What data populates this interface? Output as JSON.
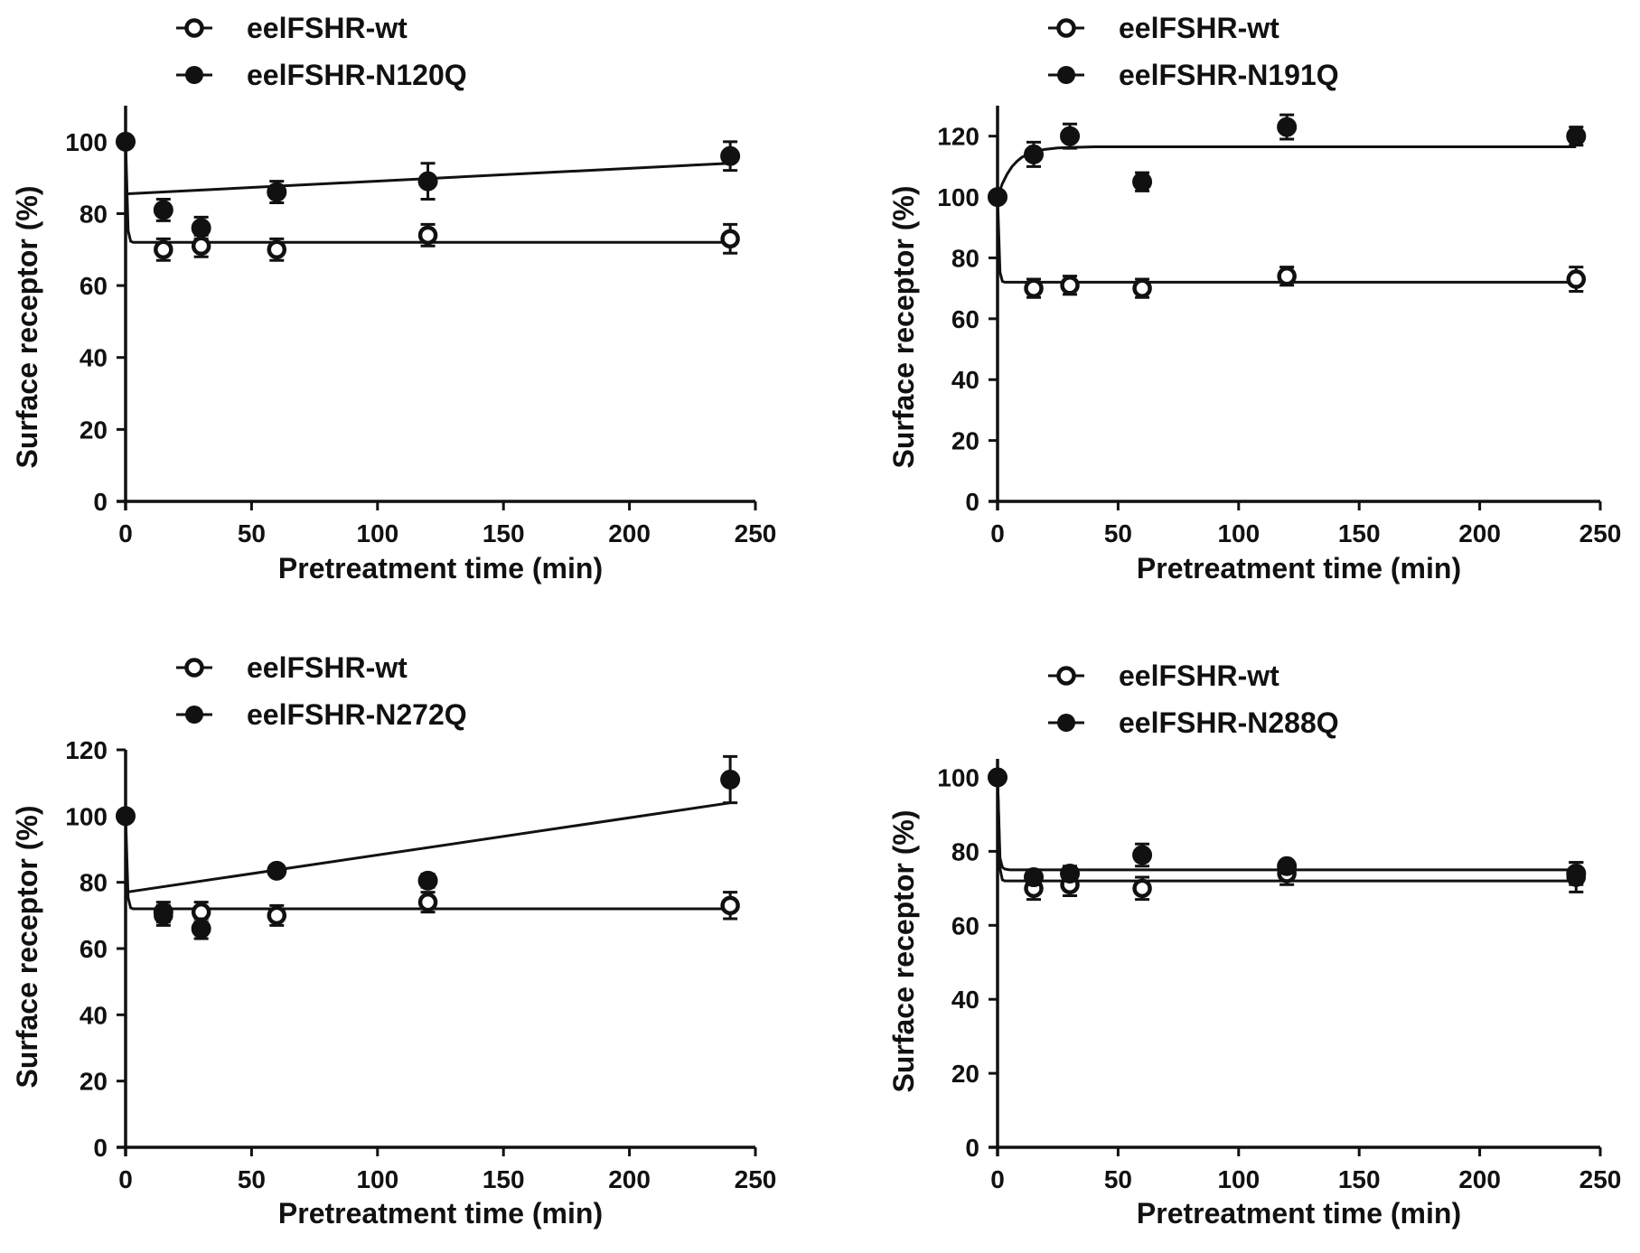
{
  "chart_data": [
    {
      "type": "scatter",
      "xlabel": "Pretreatment time (min)",
      "ylabel": "Surface receptor (%)",
      "xlim": [
        0,
        250
      ],
      "ylim": [
        0,
        110
      ],
      "xticks": [
        "0",
        "50",
        "100",
        "150",
        "200",
        "250"
      ],
      "yticks": [
        "0",
        "20",
        "40",
        "60",
        "80",
        "100"
      ],
      "legend_position": "top-left",
      "series": [
        {
          "name": "eelFSHR-wt",
          "marker": "open-circle",
          "x": [
            0,
            15,
            30,
            60,
            120,
            240
          ],
          "y": [
            100,
            70,
            71,
            70,
            74,
            73
          ],
          "err": [
            0,
            3,
            3,
            3,
            3,
            4
          ],
          "fit": {
            "x": [
              0,
              1,
              2,
              3,
              5,
              10,
              20,
              40,
              80,
              160,
              240
            ],
            "y": [
              100,
              75.3,
              72.3,
              72,
              72,
              72,
              72,
              72,
              72,
              72,
              72
            ]
          }
        },
        {
          "name": "eelFSHR-N120Q",
          "marker": "filled-circle",
          "x": [
            0,
            15,
            30,
            60,
            120,
            240
          ],
          "y": [
            100,
            81,
            76,
            86,
            89,
            96
          ],
          "err": [
            0,
            3,
            3,
            3,
            5,
            4
          ],
          "fit": {
            "x": [
              0,
              240
            ],
            "y": [
              85.5,
              94
            ]
          }
        }
      ]
    },
    {
      "type": "scatter",
      "xlabel": "Pretreatment time (min)",
      "ylabel": "Surface receptor (%)",
      "xlim": [
        0,
        250
      ],
      "ylim": [
        0,
        130
      ],
      "xticks": [
        "0",
        "50",
        "100",
        "150",
        "200",
        "250"
      ],
      "yticks": [
        "0",
        "20",
        "40",
        "60",
        "80",
        "100",
        "120"
      ],
      "legend_position": "top-left",
      "series": [
        {
          "name": "eelFSHR-wt",
          "marker": "open-circle",
          "x": [
            0,
            15,
            30,
            60,
            120,
            240
          ],
          "y": [
            100,
            70,
            71,
            70,
            74,
            73
          ],
          "err": [
            0,
            3,
            3,
            3,
            3,
            4
          ],
          "fit": {
            "x": [
              0,
              1,
              2,
              3,
              5,
              10,
              20,
              40,
              80,
              160,
              240
            ],
            "y": [
              100,
              75.3,
              72.3,
              72,
              72,
              72,
              72,
              72,
              72,
              72,
              72
            ]
          }
        },
        {
          "name": "eelFSHR-N191Q",
          "marker": "filled-circle",
          "x": [
            0,
            15,
            30,
            60,
            120,
            240
          ],
          "y": [
            100,
            114,
            120,
            105,
            123,
            120
          ],
          "err": [
            0,
            4,
            4,
            3,
            4,
            3
          ],
          "fit": {
            "x": [
              0,
              2,
              4,
              6,
              8,
              10,
              13,
              16,
              20,
              25,
              30,
              40,
              60,
              100,
              160,
              240
            ],
            "y": [
              100,
              104.4,
              107.6,
              110,
              111.7,
              113,
              114.3,
              115.1,
              115.7,
              116.1,
              116.3,
              116.5,
              116.5,
              116.5,
              116.5,
              116.5
            ]
          }
        }
      ]
    },
    {
      "type": "scatter",
      "xlabel": "Pretreatment time (min)",
      "ylabel": "Surface receptor (%)",
      "xlim": [
        0,
        250
      ],
      "ylim": [
        0,
        120
      ],
      "xticks": [
        "0",
        "50",
        "100",
        "150",
        "200",
        "250"
      ],
      "yticks": [
        "0",
        "20",
        "40",
        "60",
        "80",
        "100",
        "120"
      ],
      "legend_position": "top-left",
      "series": [
        {
          "name": "eelFSHR-wt",
          "marker": "open-circle",
          "x": [
            0,
            15,
            30,
            60,
            120,
            240
          ],
          "y": [
            100,
            70,
            71,
            70,
            74,
            73
          ],
          "err": [
            0,
            3,
            3,
            3,
            3,
            4
          ],
          "fit": {
            "x": [
              0,
              1,
              2,
              3,
              5,
              10,
              20,
              40,
              80,
              160,
              240
            ],
            "y": [
              100,
              75.3,
              72.3,
              72,
              72,
              72,
              72,
              72,
              72,
              72,
              72
            ]
          }
        },
        {
          "name": "eelFSHR-N272Q",
          "marker": "filled-circle",
          "x": [
            0,
            15,
            30,
            60,
            120,
            240
          ],
          "y": [
            100,
            71,
            66,
            83.5,
            80.5,
            111
          ],
          "err": [
            0,
            3,
            3,
            1,
            2,
            7
          ],
          "fit": {
            "x": [
              0,
              240
            ],
            "y": [
              77,
              104
            ]
          }
        }
      ]
    },
    {
      "type": "scatter",
      "xlabel": "Pretreatment time (min)",
      "ylabel": "Surface receptor (%)",
      "xlim": [
        0,
        250
      ],
      "ylim": [
        0,
        105
      ],
      "xticks": [
        "0",
        "50",
        "100",
        "150",
        "200",
        "250"
      ],
      "yticks": [
        "0",
        "20",
        "40",
        "60",
        "80",
        "100"
      ],
      "legend_position": "top-left",
      "series": [
        {
          "name": "eelFSHR-wt",
          "marker": "open-circle",
          "x": [
            0,
            15,
            30,
            60,
            120,
            240
          ],
          "y": [
            100,
            70,
            71,
            70,
            74,
            73
          ],
          "err": [
            0,
            3,
            3,
            3,
            3,
            4
          ],
          "fit": {
            "x": [
              0,
              1,
              2,
              3,
              5,
              10,
              20,
              40,
              80,
              160,
              240
            ],
            "y": [
              100,
              75.3,
              72.3,
              72,
              72,
              72,
              72,
              72,
              72,
              72,
              72
            ]
          }
        },
        {
          "name": "eelFSHR-N288Q",
          "marker": "filled-circle",
          "x": [
            0,
            15,
            30,
            60,
            120,
            240
          ],
          "y": [
            100,
            73,
            74,
            79,
            76,
            74
          ],
          "err": [
            0,
            2,
            2,
            3,
            1,
            3
          ],
          "fit": {
            "x": [
              0,
              1,
              2,
              3,
              5,
              10,
              20,
              40,
              80,
              160,
              240
            ],
            "y": [
              100,
              78.2,
              75.7,
              75.2,
              75,
              75,
              75,
              75,
              75,
              75,
              75
            ]
          }
        }
      ]
    }
  ]
}
